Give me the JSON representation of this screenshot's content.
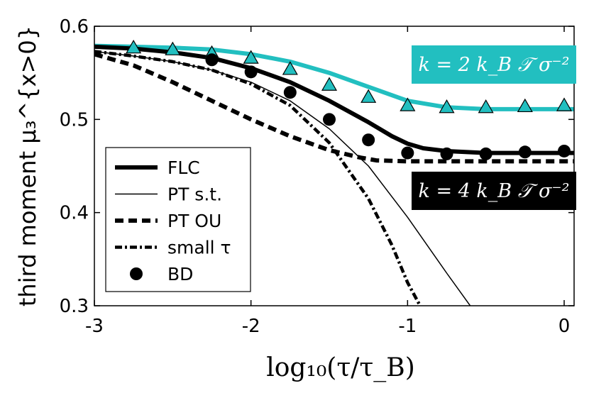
{
  "chart_data": {
    "type": "line",
    "xlabel": "log₁₀(τ/τ_B)",
    "ylabel": "third moment μ₃^{x>0}",
    "xlim": [
      -3,
      0.1
    ],
    "ylim": [
      0.3,
      0.6
    ],
    "x_ticks": [
      "-3",
      "-2",
      "-1",
      "0"
    ],
    "y_ticks": [
      "0.3",
      "0.4",
      "0.5",
      "0.6"
    ],
    "x_tick_values": [
      -3,
      -2,
      -1,
      0
    ],
    "y_tick_values": [
      0.3,
      0.4,
      0.5,
      0.6
    ],
    "colors": {
      "cyan": "#22bfc0",
      "black": "#000000",
      "triangle_fill": "#22bfc0"
    },
    "series": [
      {
        "name": "FLC k=2",
        "style": "thick-cyan",
        "x": [
          -3.0,
          -2.75,
          -2.5,
          -2.25,
          -2.0,
          -1.75,
          -1.5,
          -1.25,
          -1.0,
          -0.75,
          -0.5,
          -0.25,
          0.0,
          0.1
        ],
        "y": [
          0.579,
          0.578,
          0.577,
          0.575,
          0.57,
          0.562,
          0.55,
          0.535,
          0.52,
          0.513,
          0.511,
          0.511,
          0.511,
          0.511
        ]
      },
      {
        "name": "BD k=2",
        "style": "triangle",
        "x": [
          -2.75,
          -2.5,
          -2.25,
          -2.0,
          -1.75,
          -1.5,
          -1.25,
          -1.0,
          -0.75,
          -0.5,
          -0.25,
          0.0
        ],
        "y": [
          0.577,
          0.575,
          0.571,
          0.566,
          0.554,
          0.537,
          0.524,
          0.515,
          0.513,
          0.513,
          0.514,
          0.515
        ]
      },
      {
        "name": "FLC",
        "style": "thick-black",
        "x": [
          -3.0,
          -2.75,
          -2.5,
          -2.25,
          -2.0,
          -1.75,
          -1.5,
          -1.25,
          -1.1,
          -1.0,
          -0.9,
          -0.75,
          -0.5,
          -0.25,
          0.0,
          0.1
        ],
        "y": [
          0.578,
          0.576,
          0.572,
          0.566,
          0.555,
          0.54,
          0.52,
          0.497,
          0.482,
          0.474,
          0.469,
          0.466,
          0.464,
          0.464,
          0.464,
          0.464
        ]
      },
      {
        "name": "PT s.t.",
        "style": "thin-black",
        "x": [
          -3.0,
          -2.75,
          -2.5,
          -2.25,
          -2.0,
          -1.75,
          -1.5,
          -1.25,
          -1.0,
          -0.75,
          -0.6
        ],
        "y": [
          0.573,
          0.568,
          0.562,
          0.553,
          0.54,
          0.52,
          0.49,
          0.45,
          0.395,
          0.335,
          0.3
        ]
      },
      {
        "name": "PT OU",
        "style": "dashed-black",
        "x": [
          -3.0,
          -2.75,
          -2.5,
          -2.25,
          -2.0,
          -1.75,
          -1.5,
          -1.3,
          -1.2,
          -1.0,
          -0.5,
          0.0,
          0.1
        ],
        "y": [
          0.57,
          0.558,
          0.54,
          0.52,
          0.5,
          0.482,
          0.467,
          0.459,
          0.456,
          0.455,
          0.455,
          0.455,
          0.455
        ]
      },
      {
        "name": "small τ",
        "style": "dashdot-black",
        "x": [
          -3.0,
          -2.75,
          -2.5,
          -2.25,
          -2.0,
          -1.75,
          -1.5,
          -1.25,
          -1.1,
          -1.0,
          -0.92
        ],
        "y": [
          0.573,
          0.568,
          0.562,
          0.553,
          0.538,
          0.515,
          0.475,
          0.415,
          0.365,
          0.325,
          0.3
        ]
      },
      {
        "name": "BD",
        "style": "circle",
        "x": [
          -2.25,
          -2.0,
          -1.75,
          -1.5,
          -1.25,
          -1.0,
          -0.75,
          -0.5,
          -0.25,
          0.0
        ],
        "y": [
          0.564,
          0.551,
          0.529,
          0.5,
          0.478,
          0.464,
          0.463,
          0.463,
          0.465,
          0.466
        ]
      }
    ],
    "legend": {
      "placement": "lower-left",
      "entries": [
        {
          "label": "FLC",
          "style": "thick-black"
        },
        {
          "label": "PT s.t.",
          "style": "thin-black"
        },
        {
          "label": "PT OU",
          "style": "dashed-black"
        },
        {
          "label": "small τ",
          "style": "dashdot-black"
        },
        {
          "label": "BD",
          "style": "circle"
        }
      ]
    },
    "annotations": [
      {
        "text": "k = 2  k_B 𝒯 σ⁻²",
        "background": "#22bfc0"
      },
      {
        "text": "k = 4  k_B 𝒯 σ⁻²",
        "background": "#000000"
      }
    ]
  }
}
